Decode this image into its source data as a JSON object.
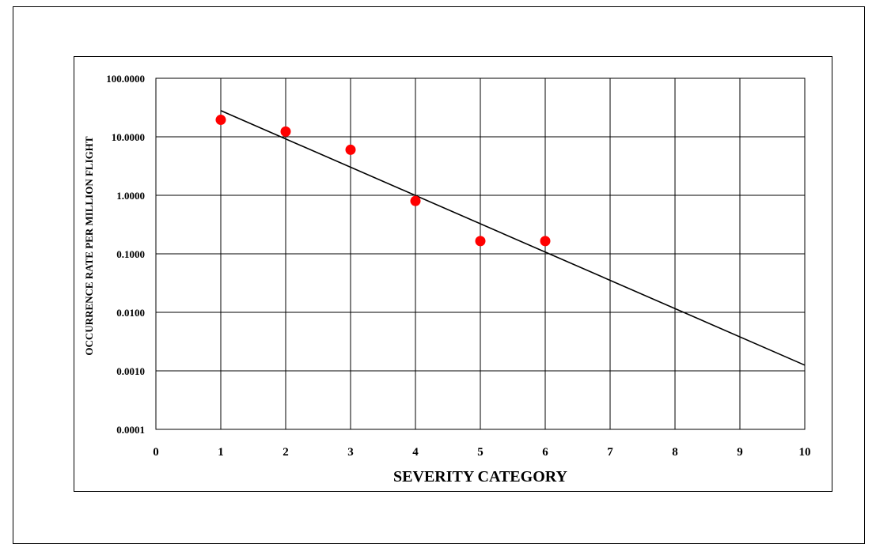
{
  "chart_data": {
    "type": "scatter",
    "xlabel": "SEVERITY CATEGORY",
    "ylabel": "OCCURRENCE RATE PER MILLION FLIGHT",
    "xlim": [
      0,
      10
    ],
    "ylim": [
      0.0001,
      100
    ],
    "yscale": "log",
    "grid": true,
    "x_ticks": [
      "0",
      "1",
      "2",
      "3",
      "4",
      "5",
      "6",
      "7",
      "8",
      "9",
      "10"
    ],
    "y_ticks": [
      "0.0001",
      "0.0010",
      "0.0100",
      "0.1000",
      "1.0000",
      "10.0000",
      "100.0000"
    ],
    "series": [
      {
        "kind": "points",
        "color": "#ff0000",
        "x": [
          1,
          2,
          3,
          4,
          5,
          6
        ],
        "y": [
          19.5,
          12.3,
          6.0,
          0.8,
          0.165,
          0.165
        ]
      },
      {
        "kind": "trendline",
        "color": "#000000",
        "x": [
          1,
          10
        ],
        "y": [
          28,
          0.00125
        ]
      }
    ]
  }
}
